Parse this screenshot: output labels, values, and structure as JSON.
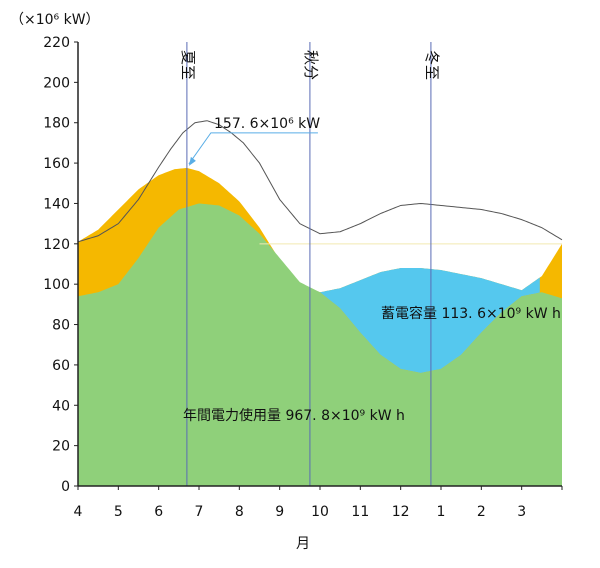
{
  "chart_data": {
    "type": "area",
    "y_unit_label": "（×10⁶ kW）",
    "xlabel": "月",
    "ylim": [
      0,
      220
    ],
    "yticks": [
      0,
      20,
      40,
      60,
      80,
      100,
      120,
      140,
      160,
      180,
      200,
      220
    ],
    "x_tick_labels": [
      "4",
      "5",
      "6",
      "7",
      "8",
      "9",
      "10",
      "11",
      "12",
      "1",
      "2",
      "3"
    ],
    "x_range_months": [
      0,
      12
    ],
    "grid": false,
    "season_markers": [
      {
        "label": "夏至",
        "month": 2.7
      },
      {
        "label": "秋分",
        "month": 5.75
      },
      {
        "label": "冬至",
        "month": 8.75
      }
    ],
    "series": [
      {
        "name": "total_demand",
        "color": "#555555",
        "x": [
          0,
          0.5,
          1,
          1.5,
          2,
          2.3,
          2.6,
          2.9,
          3.2,
          3.5,
          3.8,
          4.1,
          4.5,
          5,
          5.5,
          6,
          6.5,
          7,
          7.5,
          8,
          8.5,
          9,
          9.5,
          10,
          10.5,
          11,
          11.5,
          12
        ],
        "y": [
          121,
          124,
          130,
          142,
          158,
          167,
          175,
          180,
          181,
          179,
          175,
          170,
          160,
          142,
          130,
          125,
          126,
          130,
          135,
          139,
          140,
          139,
          138,
          137,
          135,
          132,
          128,
          122
        ]
      },
      {
        "name": "solar_supply",
        "color": "#f5b800",
        "x": [
          0,
          0.5,
          1,
          1.5,
          2,
          2.4,
          2.7,
          3,
          3.5,
          4,
          4.5,
          5,
          5.5,
          6,
          6.5,
          7,
          7.5,
          8,
          8.5,
          9,
          9.5,
          10,
          10.5,
          11,
          11.5,
          12
        ],
        "y": [
          121,
          127,
          137,
          147,
          154,
          157,
          157.6,
          156,
          150,
          141,
          128,
          112,
          100,
          96,
          98,
          102,
          106,
          108,
          108,
          107,
          105,
          103,
          100,
          97,
          104,
          120
        ]
      },
      {
        "name": "demand_used",
        "color": "#8fd07a",
        "x": [
          0,
          0.5,
          1,
          1.5,
          2,
          2.5,
          3,
          3.5,
          4,
          4.5,
          5,
          5.5,
          6,
          6.5,
          7,
          7.5,
          8,
          8.5,
          9,
          9.5,
          10,
          10.5,
          11,
          11.5,
          12
        ],
        "y": [
          94,
          96,
          100,
          113,
          128,
          137,
          140,
          139,
          134,
          125,
          113,
          101,
          96,
          88,
          76,
          65,
          58,
          56,
          58,
          65,
          76,
          86,
          94,
          96,
          93
        ]
      }
    ],
    "annotations": {
      "peak": {
        "text": "157. 6×10⁶ kW",
        "month": 2.7,
        "value": 157.6
      },
      "storage": {
        "text": "蓄電容量  113. 6×10⁹ kW h"
      },
      "annual": {
        "text": "年間電力使用量  967. 8×10⁹ kW h"
      }
    },
    "colors": {
      "storage_fill": "#55c8ee",
      "axis": "#222222",
      "marker_line": "#5a6bb5",
      "light_line": "#f2e9b0"
    }
  }
}
